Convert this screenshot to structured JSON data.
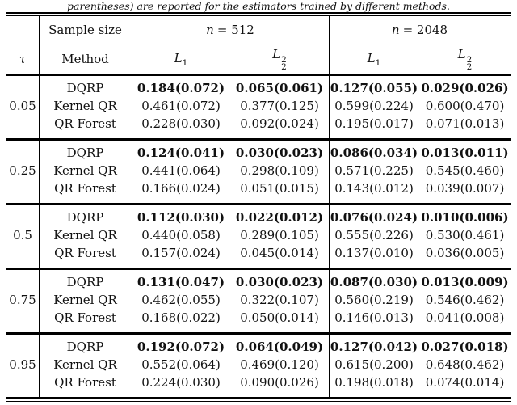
{
  "caption": "parentheses) are reported for the estimators trained by different methods.",
  "header": {
    "sample_size_label": "Sample size",
    "n512": {
      "var": "n",
      "rest": "= 512"
    },
    "n2048": {
      "var": "n",
      "rest": "= 2048"
    },
    "tau_label": "τ",
    "method_label": "Method",
    "metrics": {
      "l1": {
        "base": "L",
        "sub": "1"
      },
      "l22": {
        "base": "L",
        "sub": "2",
        "sup": "2"
      }
    }
  },
  "blocks": [
    {
      "tau": "0.05",
      "rows": [
        {
          "method": "DQRP",
          "bold": true,
          "values": [
            "0.184(0.072)",
            "0.065(0.061)",
            "0.127(0.055)",
            "0.029(0.026)"
          ]
        },
        {
          "method": "Kernel QR",
          "bold": false,
          "values": [
            "0.461(0.072)",
            "0.377(0.125)",
            "0.599(0.224)",
            "0.600(0.470)"
          ]
        },
        {
          "method": "QR Forest",
          "bold": false,
          "values": [
            "0.228(0.030)",
            "0.092(0.024)",
            "0.195(0.017)",
            "0.071(0.013)"
          ]
        }
      ]
    },
    {
      "tau": "0.25",
      "rows": [
        {
          "method": "DQRP",
          "bold": true,
          "values": [
            "0.124(0.041)",
            "0.030(0.023)",
            "0.086(0.034)",
            "0.013(0.011)"
          ]
        },
        {
          "method": "Kernel QR",
          "bold": false,
          "values": [
            "0.441(0.064)",
            "0.298(0.109)",
            "0.571(0.225)",
            "0.545(0.460)"
          ]
        },
        {
          "method": "QR Forest",
          "bold": false,
          "values": [
            "0.166(0.024)",
            "0.051(0.015)",
            "0.143(0.012)",
            "0.039(0.007)"
          ]
        }
      ]
    },
    {
      "tau": "0.5",
      "rows": [
        {
          "method": "DQRP",
          "bold": true,
          "values": [
            "0.112(0.030)",
            "0.022(0.012)",
            "0.076(0.024)",
            "0.010(0.006)"
          ]
        },
        {
          "method": "Kernel QR",
          "bold": false,
          "values": [
            "0.440(0.058)",
            "0.289(0.105)",
            "0.555(0.226)",
            "0.530(0.461)"
          ]
        },
        {
          "method": "QR Forest",
          "bold": false,
          "values": [
            "0.157(0.024)",
            "0.045(0.014)",
            "0.137(0.010)",
            "0.036(0.005)"
          ]
        }
      ]
    },
    {
      "tau": "0.75",
      "rows": [
        {
          "method": "DQRP",
          "bold": true,
          "values": [
            "0.131(0.047)",
            "0.030(0.023)",
            "0.087(0.030)",
            "0.013(0.009)"
          ]
        },
        {
          "method": "Kernel QR",
          "bold": false,
          "values": [
            "0.462(0.055)",
            "0.322(0.107)",
            "0.560(0.219)",
            "0.546(0.462)"
          ]
        },
        {
          "method": "QR Forest",
          "bold": false,
          "values": [
            "0.168(0.022)",
            "0.050(0.014)",
            "0.146(0.013)",
            "0.041(0.008)"
          ]
        }
      ]
    },
    {
      "tau": "0.95",
      "rows": [
        {
          "method": "DQRP",
          "bold": true,
          "values": [
            "0.192(0.072)",
            "0.064(0.049)",
            "0.127(0.042)",
            "0.027(0.018)"
          ]
        },
        {
          "method": "Kernel QR",
          "bold": false,
          "values": [
            "0.552(0.064)",
            "0.469(0.120)",
            "0.615(0.200)",
            "0.648(0.462)"
          ]
        },
        {
          "method": "QR Forest",
          "bold": false,
          "values": [
            "0.224(0.030)",
            "0.090(0.026)",
            "0.198(0.018)",
            "0.074(0.014)"
          ]
        }
      ]
    }
  ]
}
